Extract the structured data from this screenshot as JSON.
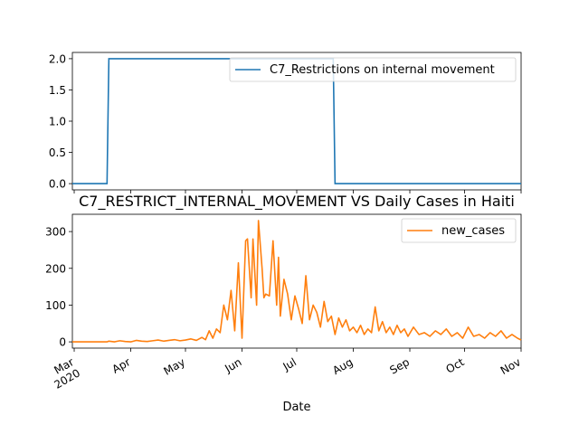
{
  "chart_data": [
    {
      "type": "line",
      "title": "",
      "xlabel": "",
      "ylabel": "",
      "xlim": [
        "2020-02-29",
        "2020-11-01"
      ],
      "ylim": [
        -0.1,
        2.1
      ],
      "yticks": [
        0.0,
        0.5,
        1.0,
        1.5,
        2.0
      ],
      "ytick_labels": [
        "0.0",
        "0.5",
        "1.0",
        "1.5",
        "2.0"
      ],
      "grid": false,
      "legend": "top-right",
      "series": [
        {
          "name": "C7_Restrictions on internal movement",
          "color": "#1f77b4",
          "x": [
            "2020-02-29",
            "2020-03-19",
            "2020-03-20",
            "2020-07-21",
            "2020-07-22",
            "2020-11-01"
          ],
          "y": [
            0,
            0,
            2,
            2,
            0,
            0
          ]
        }
      ]
    },
    {
      "type": "line",
      "title": "C7_RESTRICT_INTERNAL_MOVEMENT VS Daily Cases in Haiti",
      "xlabel": "Date",
      "ylabel": "",
      "xlim": [
        "2020-02-29",
        "2020-11-01"
      ],
      "ylim": [
        -17,
        347
      ],
      "yticks": [
        0,
        100,
        200,
        300
      ],
      "ytick_labels": [
        "0",
        "100",
        "200",
        "300"
      ],
      "xticks": [
        "2020-03-01",
        "2020-04-01",
        "2020-05-01",
        "2020-06-01",
        "2020-07-01",
        "2020-08-01",
        "2020-09-01",
        "2020-10-01",
        "2020-11-01"
      ],
      "xtick_labels": [
        "Mar\n2020",
        "Apr",
        "May",
        "Jun",
        "Jul",
        "Aug",
        "Sep",
        "Oct",
        "Nov"
      ],
      "grid": false,
      "legend": "top-right",
      "series": [
        {
          "name": "new_cases",
          "color": "#ff7f0e",
          "x": [
            "2020-02-29",
            "2020-03-19",
            "2020-03-20",
            "2020-03-23",
            "2020-03-26",
            "2020-03-29",
            "2020-04-01",
            "2020-04-04",
            "2020-04-07",
            "2020-04-10",
            "2020-04-13",
            "2020-04-16",
            "2020-04-19",
            "2020-04-22",
            "2020-04-25",
            "2020-04-28",
            "2020-05-01",
            "2020-05-04",
            "2020-05-07",
            "2020-05-10",
            "2020-05-12",
            "2020-05-14",
            "2020-05-16",
            "2020-05-18",
            "2020-05-20",
            "2020-05-22",
            "2020-05-24",
            "2020-05-26",
            "2020-05-28",
            "2020-05-30",
            "2020-06-01",
            "2020-06-03",
            "2020-06-04",
            "2020-06-06",
            "2020-06-07",
            "2020-06-09",
            "2020-06-10",
            "2020-06-12",
            "2020-06-13",
            "2020-06-14",
            "2020-06-16",
            "2020-06-18",
            "2020-06-20",
            "2020-06-21",
            "2020-06-22",
            "2020-06-24",
            "2020-06-26",
            "2020-06-28",
            "2020-06-30",
            "2020-07-02",
            "2020-07-04",
            "2020-07-06",
            "2020-07-08",
            "2020-07-10",
            "2020-07-12",
            "2020-07-14",
            "2020-07-16",
            "2020-07-18",
            "2020-07-20",
            "2020-07-22",
            "2020-07-24",
            "2020-07-26",
            "2020-07-28",
            "2020-07-30",
            "2020-08-01",
            "2020-08-03",
            "2020-08-05",
            "2020-08-07",
            "2020-08-09",
            "2020-08-11",
            "2020-08-13",
            "2020-08-15",
            "2020-08-17",
            "2020-08-19",
            "2020-08-21",
            "2020-08-23",
            "2020-08-25",
            "2020-08-27",
            "2020-08-29",
            "2020-08-31",
            "2020-09-03",
            "2020-09-06",
            "2020-09-09",
            "2020-09-12",
            "2020-09-15",
            "2020-09-18",
            "2020-09-21",
            "2020-09-24",
            "2020-09-27",
            "2020-09-30",
            "2020-10-03",
            "2020-10-06",
            "2020-10-09",
            "2020-10-12",
            "2020-10-15",
            "2020-10-18",
            "2020-10-21",
            "2020-10-24",
            "2020-10-27",
            "2020-10-30",
            "2020-11-01"
          ],
          "y": [
            0,
            0,
            2,
            0,
            3,
            1,
            0,
            4,
            2,
            1,
            3,
            5,
            2,
            4,
            6,
            3,
            5,
            8,
            4,
            12,
            6,
            30,
            10,
            35,
            25,
            100,
            60,
            140,
            30,
            215,
            10,
            275,
            280,
            120,
            280,
            100,
            330,
            200,
            120,
            130,
            125,
            275,
            100,
            230,
            70,
            170,
            130,
            60,
            125,
            90,
            50,
            180,
            60,
            100,
            80,
            40,
            110,
            55,
            70,
            20,
            65,
            40,
            60,
            30,
            40,
            25,
            45,
            20,
            35,
            25,
            95,
            30,
            55,
            25,
            40,
            20,
            45,
            25,
            35,
            15,
            40,
            20,
            25,
            15,
            30,
            20,
            35,
            15,
            25,
            10,
            40,
            15,
            20,
            10,
            25,
            15,
            30,
            10,
            20,
            10,
            5
          ]
        }
      ]
    }
  ]
}
